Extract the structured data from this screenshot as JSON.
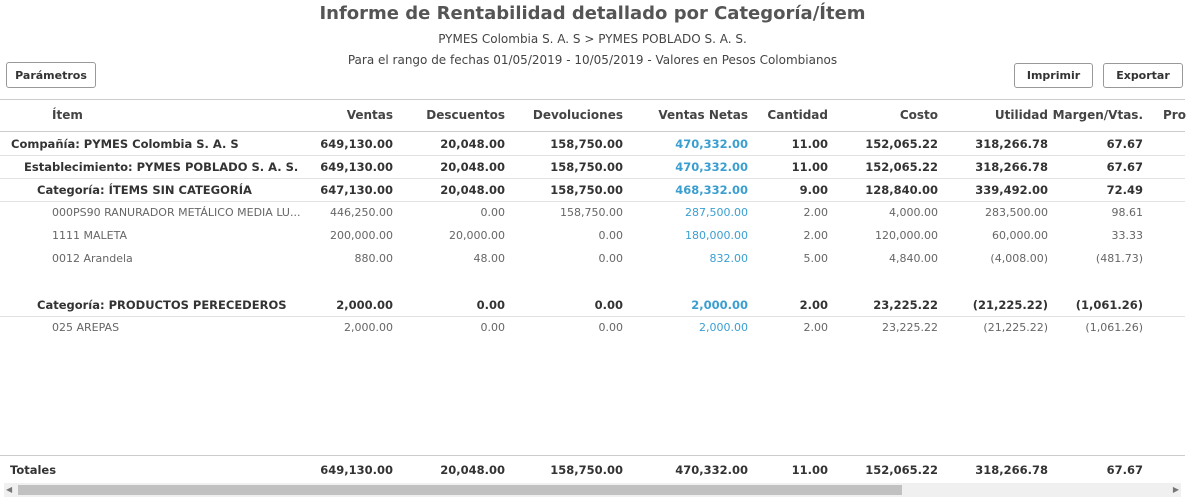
{
  "header": {
    "title": "Informe de Rentabilidad detallado por Categoría/Ítem",
    "subtitle": "PYMES Colombia S. A. S > PYMES POBLADO S. A. S.",
    "range": "Para el rango de fechas 01/05/2019 - 10/05/2019 - Valores en Pesos Colombianos"
  },
  "buttons": {
    "params": "Parámetros",
    "print": "Imprimir",
    "export": "Exportar"
  },
  "table": {
    "columns": [
      "Ítem",
      "Ventas",
      "Descuentos",
      "Devoluciones",
      "Ventas Netas",
      "Cantidad",
      "Costo",
      "Utilidad",
      "Margen/Vtas.",
      "Pro"
    ],
    "company": {
      "label": "Compañía: PYMES Colombia S. A. S",
      "values": [
        "649,130.00",
        "20,048.00",
        "158,750.00",
        "470,332.00",
        "11.00",
        "152,065.22",
        "318,266.78",
        "67.67"
      ],
      "establishment": {
        "label": "Establecimiento: PYMES POBLADO S. A. S.",
        "values": [
          "649,130.00",
          "20,048.00",
          "158,750.00",
          "470,332.00",
          "11.00",
          "152,065.22",
          "318,266.78",
          "67.67"
        ],
        "categories": [
          {
            "label": "Categoría: ÍTEMS SIN CATEGORÍA",
            "values": [
              "647,130.00",
              "20,048.00",
              "158,750.00",
              "468,332.00",
              "9.00",
              "128,840.00",
              "339,492.00",
              "72.49"
            ],
            "items": [
              {
                "label": "000PS90 RANURADOR METÁLICO MEDIA LU...",
                "values": [
                  "446,250.00",
                  "0.00",
                  "158,750.00",
                  "287,500.00",
                  "2.00",
                  "4,000.00",
                  "283,500.00",
                  "98.61"
                ]
              },
              {
                "label": "1111 MALETA",
                "values": [
                  "200,000.00",
                  "20,000.00",
                  "0.00",
                  "180,000.00",
                  "2.00",
                  "120,000.00",
                  "60,000.00",
                  "33.33"
                ]
              },
              {
                "label": "0012 Arandela",
                "values": [
                  "880.00",
                  "48.00",
                  "0.00",
                  "832.00",
                  "5.00",
                  "4,840.00",
                  "(4,008.00)",
                  "(481.73)"
                ]
              }
            ]
          },
          {
            "label": "Categoría: PRODUCTOS PERECEDEROS",
            "values": [
              "2,000.00",
              "0.00",
              "0.00",
              "2,000.00",
              "2.00",
              "23,225.22",
              "(21,225.22)",
              "(1,061.26)"
            ],
            "items": [
              {
                "label": "025 AREPAS",
                "values": [
                  "2,000.00",
                  "0.00",
                  "0.00",
                  "2,000.00",
                  "2.00",
                  "23,225.22",
                  "(21,225.22)",
                  "(1,061.26)"
                ]
              }
            ]
          }
        ]
      }
    },
    "totals": {
      "label": "Totales",
      "values": [
        "649,130.00",
        "20,048.00",
        "158,750.00",
        "470,332.00",
        "11.00",
        "152,065.22",
        "318,266.78",
        "67.67"
      ]
    }
  }
}
